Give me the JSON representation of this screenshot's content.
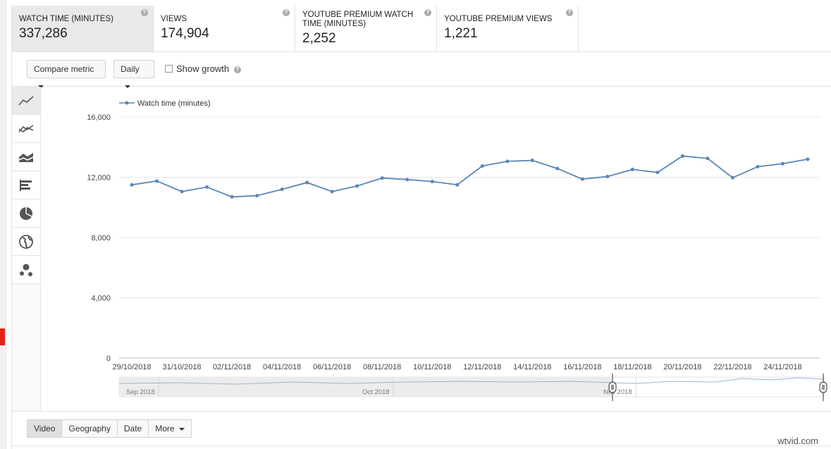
{
  "metrics": [
    {
      "label": "Watch time (minutes)",
      "value": "337,286",
      "active": true
    },
    {
      "label": "Views",
      "value": "174,904",
      "active": false
    },
    {
      "label": "YouTube Premium watch time (minutes)",
      "value": "2,252",
      "active": false
    },
    {
      "label": "YouTube Premium views",
      "value": "1,221",
      "active": false
    }
  ],
  "controls": {
    "compare_metric": "Compare metric",
    "interval": "Daily",
    "show_growth": "Show growth",
    "help_glyph": "?"
  },
  "chart_types": [
    "line-chart-icon",
    "multi-line-chart-icon",
    "stacked-area-chart-icon",
    "bar-chart-icon",
    "pie-chart-icon",
    "globe-map-icon",
    "bubble-chart-icon"
  ],
  "chart_data": {
    "type": "line",
    "legend": "Watch time (minutes)",
    "legend_position": "top-left",
    "color": "#5b86b5",
    "ylim": [
      0,
      16000
    ],
    "yticks": [
      "0",
      "4,000",
      "8,000",
      "12,000",
      "16,000"
    ],
    "grid": true,
    "x": [
      "29/10/2018",
      "30/10/2018",
      "31/10/2018",
      "01/11/2018",
      "02/11/2018",
      "03/11/2018",
      "04/11/2018",
      "05/11/2018",
      "06/11/2018",
      "07/11/2018",
      "08/11/2018",
      "09/11/2018",
      "10/11/2018",
      "11/11/2018",
      "12/11/2018",
      "13/11/2018",
      "14/11/2018",
      "15/11/2018",
      "16/11/2018",
      "17/11/2018",
      "18/11/2018",
      "19/11/2018",
      "20/11/2018",
      "21/11/2018",
      "22/11/2018",
      "23/11/2018",
      "24/11/2018",
      "25/11/2018"
    ],
    "xtick_labels": [
      "29/10/2018",
      "31/10/2018",
      "02/11/2018",
      "04/11/2018",
      "06/11/2018",
      "08/11/2018",
      "10/11/2018",
      "12/11/2018",
      "14/11/2018",
      "16/11/2018",
      "18/11/2018",
      "20/11/2018",
      "22/11/2018",
      "24/11/2018"
    ],
    "values": [
      11500,
      11750,
      11050,
      11350,
      10700,
      10780,
      11200,
      11650,
      11050,
      11420,
      11950,
      11850,
      11720,
      11500,
      12750,
      13060,
      13120,
      12580,
      11880,
      12050,
      12520,
      12320,
      13410,
      13250,
      11970,
      12700,
      12900,
      13200
    ]
  },
  "navigator": {
    "months": [
      "Sep 2018",
      "Oct 2018",
      "Nov 2018"
    ]
  },
  "tabs": [
    {
      "label": "Video",
      "active": true
    },
    {
      "label": "Geography",
      "active": false
    },
    {
      "label": "Date",
      "active": false
    },
    {
      "label": "More",
      "active": false
    }
  ],
  "watermark": "wtvid.com"
}
